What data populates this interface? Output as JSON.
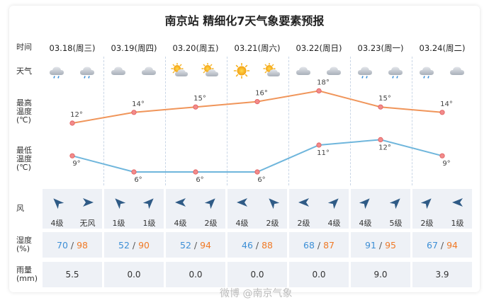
{
  "title": "南京站 精细化7天气象要素预报",
  "row_labels": {
    "time": "时间",
    "weather": "天气",
    "high": "最高\n温度\n(℃)",
    "low": "最低\n温度\n(℃)",
    "wind": "风",
    "humidity": "湿度\n(%)",
    "rain": "雨量\n(mm)"
  },
  "days": [
    {
      "date": "03.18(周三)",
      "icons": [
        "cloud-rain-icon",
        "cloud-rain-icon"
      ],
      "wind_dirs": [
        "northwest",
        "east"
      ],
      "wind_levels": [
        "4级",
        "无风"
      ],
      "hum_low": "70",
      "hum_high": "98",
      "rain": "5.5"
    },
    {
      "date": "03.19(周四)",
      "icons": [
        "cloud-icon",
        "cloud-icon"
      ],
      "wind_dirs": [
        "northwest",
        "northeast"
      ],
      "wind_levels": [
        "1级",
        "1级"
      ],
      "hum_low": "52",
      "hum_high": "90",
      "rain": "0.0"
    },
    {
      "date": "03.20(周五)",
      "icons": [
        "partly-sunny-icon",
        "partly-sunny-icon"
      ],
      "wind_dirs": [
        "west",
        "northeast"
      ],
      "wind_levels": [
        "4级",
        "2级"
      ],
      "hum_low": "52",
      "hum_high": "94",
      "rain": "0.0"
    },
    {
      "date": "03.21(周六)",
      "icons": [
        "sun-icon",
        "partly-sunny-icon"
      ],
      "wind_dirs": [
        "west",
        "northwest"
      ],
      "wind_levels": [
        "4级",
        "2级"
      ],
      "hum_low": "46",
      "hum_high": "88",
      "rain": "0.0"
    },
    {
      "date": "03.22(周日)",
      "icons": [
        "cloud-icon",
        "cloud-icon"
      ],
      "wind_dirs": [
        "west",
        "northeast"
      ],
      "wind_levels": [
        "2级",
        "4级"
      ],
      "hum_low": "68",
      "hum_high": "87",
      "rain": "0.0"
    },
    {
      "date": "03.23(周一)",
      "icons": [
        "cloud-rain-icon",
        "cloud-rain-icon"
      ],
      "wind_dirs": [
        "northeast",
        "northeast"
      ],
      "wind_levels": [
        "4级",
        "5级"
      ],
      "hum_low": "91",
      "hum_high": "95",
      "rain": "9.0"
    },
    {
      "date": "03.24(周二)",
      "icons": [
        "cloud-rain-icon",
        "cloud-icon"
      ],
      "wind_dirs": [
        "northeast",
        "west"
      ],
      "wind_levels": [
        "2级",
        "1级"
      ],
      "hum_low": "67",
      "hum_high": "94",
      "rain": "3.9"
    }
  ],
  "chart_data": {
    "type": "line",
    "categories": [
      "03.18(周三)",
      "03.19(周四)",
      "03.20(周五)",
      "03.21(周六)",
      "03.22(周日)",
      "03.23(周一)",
      "03.24(周二)"
    ],
    "series": [
      {
        "name": "最高温度",
        "values": [
          12,
          14,
          15,
          16,
          18,
          15,
          14
        ],
        "labels": [
          "12°",
          "14°",
          "15°",
          "16°",
          "18°",
          "15°",
          "14°"
        ]
      },
      {
        "name": "最低温度",
        "values": [
          9,
          6,
          6,
          6,
          11,
          12,
          9
        ],
        "labels": [
          "9°",
          "6°",
          "6°",
          "6°",
          "11°",
          "12°",
          "9°"
        ]
      }
    ]
  },
  "colors": {
    "high_line": "#f0955a",
    "low_line": "#6fb6dc",
    "point_fill": "#f28b8b",
    "humidity_low": "#3d8fd6",
    "humidity_high": "#f07a27"
  },
  "watermark": "微博 @南京气象"
}
